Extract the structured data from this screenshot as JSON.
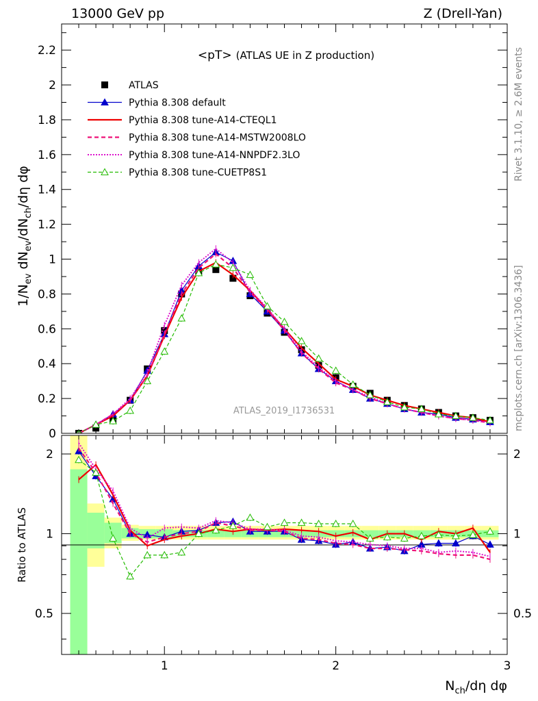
{
  "header": {
    "left": "13000 GeV pp",
    "right": "Z (Drell-Yan)"
  },
  "side_labels": {
    "rivet": "Rivet 3.1.10, ≥ 2.6M events",
    "mcplots": "mcplots.cern.ch [arXiv:1306.3436]"
  },
  "colors": {
    "data": "#000000",
    "default": "#0000cc",
    "cteql1": "#ee0000",
    "mstw": "#ee1177",
    "nnpdf": "#dd11cc",
    "cuetp8s1": "#22bb00",
    "band_inner": "#99ff99",
    "band_outer": "#ffff99"
  },
  "chart_data": [
    {
      "type": "line",
      "title": "<pT> (ATLAS UE in Z production)",
      "title_main": "<pT>",
      "title_sub": "(ATLAS UE in Z production)",
      "ylabel": "1/N_ev dN_ev/dN_ch/dη dφ",
      "xlabel": "N_ch/dη dφ",
      "watermark": "ATLAS_2019_I1736531",
      "xlim": [
        0.4,
        3.0
      ],
      "ylim": [
        0,
        2.35
      ],
      "xticks": [
        "1",
        "2",
        "3"
      ],
      "yticks": [
        "0",
        "0.2",
        "0.4",
        "0.6",
        "0.8",
        "1",
        "1.2",
        "1.4",
        "1.6",
        "1.8",
        "2",
        "2.2"
      ],
      "legend_position": "top-left",
      "x": [
        0.5,
        0.6,
        0.7,
        0.8,
        0.9,
        1.0,
        1.1,
        1.2,
        1.3,
        1.4,
        1.5,
        1.6,
        1.7,
        1.8,
        1.9,
        2.0,
        2.1,
        2.2,
        2.3,
        2.4,
        2.5,
        2.6,
        2.7,
        2.8,
        2.9
      ],
      "series": [
        {
          "name": "ATLAS",
          "style": "data",
          "values": [
            0.0,
            0.03,
            0.08,
            0.19,
            0.37,
            0.59,
            0.8,
            0.93,
            0.94,
            0.89,
            0.79,
            0.69,
            0.58,
            0.48,
            0.39,
            0.32,
            0.27,
            0.23,
            0.19,
            0.16,
            0.14,
            0.12,
            0.1,
            0.09,
            0.075
          ]
        },
        {
          "name": "Pythia 8.308 default",
          "style": "default",
          "values": [
            0.0,
            0.05,
            0.11,
            0.19,
            0.36,
            0.57,
            0.82,
            0.96,
            1.04,
            0.99,
            0.8,
            0.7,
            0.59,
            0.46,
            0.37,
            0.3,
            0.25,
            0.2,
            0.17,
            0.14,
            0.12,
            0.11,
            0.09,
            0.08,
            0.065
          ]
        },
        {
          "name": "Pythia 8.308 tune-A14-CTEQL1",
          "style": "cteql1",
          "values": [
            0.0,
            0.05,
            0.1,
            0.19,
            0.33,
            0.56,
            0.78,
            0.93,
            0.98,
            0.91,
            0.82,
            0.71,
            0.6,
            0.49,
            0.4,
            0.31,
            0.27,
            0.22,
            0.19,
            0.16,
            0.14,
            0.12,
            0.1,
            0.09,
            0.065
          ]
        },
        {
          "name": "Pythia 8.308 tune-A14-MSTW2008LO",
          "style": "mstw",
          "values": [
            0.0,
            0.05,
            0.11,
            0.19,
            0.33,
            0.57,
            0.8,
            0.95,
            1.03,
            0.95,
            0.81,
            0.71,
            0.59,
            0.46,
            0.37,
            0.29,
            0.25,
            0.2,
            0.17,
            0.14,
            0.12,
            0.1,
            0.085,
            0.075,
            0.06
          ]
        },
        {
          "name": "Pythia 8.308 tune-A14-NNPDF2.3LO",
          "style": "nnpdf",
          "values": [
            0.0,
            0.05,
            0.11,
            0.2,
            0.35,
            0.62,
            0.85,
            0.98,
            1.06,
            0.98,
            0.82,
            0.72,
            0.6,
            0.47,
            0.38,
            0.3,
            0.25,
            0.21,
            0.17,
            0.14,
            0.12,
            0.1,
            0.085,
            0.075,
            0.06
          ]
        },
        {
          "name": "Pythia 8.308 tune-CUETP8S1",
          "style": "cuetp8s1",
          "values": [
            0.0,
            0.05,
            0.07,
            0.13,
            0.3,
            0.47,
            0.66,
            0.92,
            0.97,
            0.95,
            0.91,
            0.73,
            0.64,
            0.53,
            0.43,
            0.36,
            0.28,
            0.22,
            0.18,
            0.15,
            0.14,
            0.11,
            0.1,
            0.09,
            0.075
          ]
        }
      ]
    },
    {
      "type": "line",
      "ylabel": "Ratio to ATLAS",
      "xlim": [
        0.4,
        3.0
      ],
      "ylim": [
        0.35,
        2.35
      ],
      "log_y": true,
      "yticks": [
        "0.5",
        "1",
        "2"
      ],
      "x": [
        0.5,
        0.6,
        0.7,
        0.8,
        0.9,
        1.0,
        1.1,
        1.2,
        1.3,
        1.4,
        1.5,
        1.6,
        1.7,
        1.8,
        1.9,
        2.0,
        2.1,
        2.2,
        2.3,
        2.4,
        2.5,
        2.6,
        2.7,
        2.8,
        2.9
      ],
      "uncertainty_band": {
        "inner_lo": [
          0.3,
          0.88,
          0.92,
          0.96,
          0.96,
          0.96,
          0.97,
          0.97,
          0.97,
          0.97,
          0.97,
          0.97,
          0.97,
          0.97,
          0.97,
          0.97,
          0.97,
          0.97,
          0.97,
          0.97,
          0.97,
          0.97,
          0.97,
          0.97,
          0.97
        ],
        "inner_hi": [
          1.75,
          1.2,
          1.1,
          1.05,
          1.04,
          1.04,
          1.03,
          1.03,
          1.03,
          1.03,
          1.03,
          1.03,
          1.03,
          1.03,
          1.03,
          1.03,
          1.03,
          1.03,
          1.03,
          1.03,
          1.03,
          1.03,
          1.03,
          1.03,
          1.03
        ],
        "outer_lo": [
          0.3,
          0.75,
          0.88,
          0.94,
          0.95,
          0.95,
          0.95,
          0.95,
          0.95,
          0.95,
          0.95,
          0.95,
          0.95,
          0.95,
          0.95,
          0.95,
          0.95,
          0.95,
          0.95,
          0.95,
          0.95,
          0.95,
          0.95,
          0.95,
          0.95
        ],
        "outer_hi": [
          2.35,
          1.3,
          1.15,
          1.08,
          1.07,
          1.07,
          1.07,
          1.07,
          1.07,
          1.07,
          1.07,
          1.07,
          1.07,
          1.07,
          1.07,
          1.07,
          1.07,
          1.07,
          1.07,
          1.07,
          1.07,
          1.07,
          1.07,
          1.07,
          1.07
        ]
      },
      "series": [
        {
          "name": "Pythia 8.308 default",
          "style": "default",
          "values": [
            2.05,
            1.65,
            1.35,
            1.0,
            0.99,
            0.97,
            1.02,
            1.03,
            1.1,
            1.11,
            1.02,
            1.02,
            1.02,
            0.95,
            0.94,
            0.91,
            0.93,
            0.88,
            0.89,
            0.86,
            0.91,
            0.92,
            0.92,
            0.98,
            0.91
          ]
        },
        {
          "name": "Pythia 8.308 tune-A14-CTEQL1",
          "style": "cteql1",
          "values": [
            1.6,
            1.82,
            1.4,
            1.03,
            0.9,
            0.95,
            0.98,
            1.0,
            1.04,
            1.02,
            1.04,
            1.03,
            1.04,
            1.03,
            1.02,
            0.98,
            1.01,
            0.95,
            1.0,
            1.0,
            0.95,
            1.02,
            1.0,
            1.05,
            0.85
          ]
        },
        {
          "name": "Pythia 8.308 tune-A14-MSTW2008LO",
          "style": "mstw",
          "values": [
            2.1,
            1.7,
            1.3,
            1.0,
            0.93,
            0.97,
            1.0,
            1.02,
            1.1,
            1.07,
            1.03,
            1.03,
            1.02,
            0.96,
            0.95,
            0.92,
            0.91,
            0.88,
            0.88,
            0.87,
            0.86,
            0.84,
            0.83,
            0.83,
            0.8
          ]
        },
        {
          "name": "Pythia 8.308 tune-A14-NNPDF2.3LO",
          "style": "nnpdf",
          "values": [
            2.2,
            1.75,
            1.45,
            1.05,
            0.96,
            1.05,
            1.06,
            1.05,
            1.12,
            1.1,
            1.04,
            1.04,
            1.03,
            0.98,
            0.97,
            0.94,
            0.93,
            0.91,
            0.9,
            0.88,
            0.88,
            0.85,
            0.86,
            0.85,
            0.82
          ]
        },
        {
          "name": "Pythia 8.308 tune-CUETP8S1",
          "style": "cuetp8s1",
          "values": [
            1.9,
            1.7,
            0.96,
            0.69,
            0.83,
            0.83,
            0.85,
            1.0,
            1.03,
            1.07,
            1.15,
            1.06,
            1.1,
            1.1,
            1.09,
            1.09,
            1.09,
            0.96,
            0.97,
            0.96,
            0.98,
            0.99,
            0.98,
            0.99,
            1.02
          ]
        }
      ]
    }
  ]
}
